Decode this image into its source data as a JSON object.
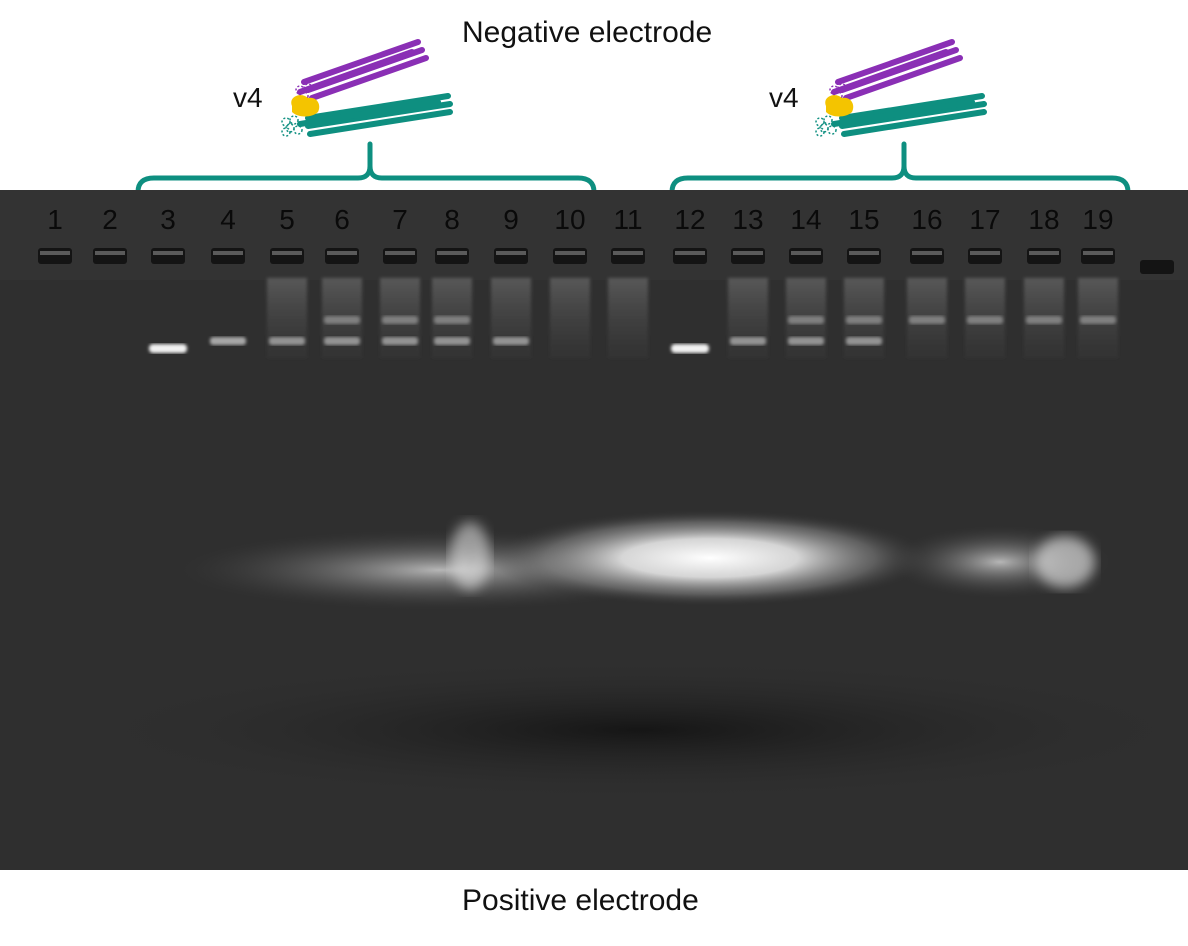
{
  "header": {
    "top_label": "Negative electrode",
    "bottom_label": "Positive electrode"
  },
  "constructs": [
    {
      "label": "v4",
      "lanes": "3-10"
    },
    {
      "label": "v4",
      "lanes": "12-19"
    }
  ],
  "colors": {
    "bracket": "#0e8f80",
    "rod_purple": "#8a2fb5",
    "rod_teal": "#0e8f80",
    "ligand_yellow": "#f4c400",
    "gel_background": "#2e2e2e"
  },
  "lanes": [
    {
      "number": "1",
      "bands": []
    },
    {
      "number": "2",
      "bands": []
    },
    {
      "number": "3",
      "bands": [
        "strong-lower"
      ]
    },
    {
      "number": "4",
      "bands": [
        "lower"
      ]
    },
    {
      "number": "5",
      "bands": [
        "lower",
        "smear"
      ]
    },
    {
      "number": "6",
      "bands": [
        "lower",
        "upper",
        "smear"
      ]
    },
    {
      "number": "7",
      "bands": [
        "lower",
        "upper",
        "smear"
      ]
    },
    {
      "number": "8",
      "bands": [
        "lower",
        "upper",
        "smear"
      ]
    },
    {
      "number": "9",
      "bands": [
        "lower",
        "smear"
      ]
    },
    {
      "number": "10",
      "bands": [
        "smear"
      ]
    },
    {
      "number": "11",
      "bands": [
        "smear"
      ]
    },
    {
      "number": "12",
      "bands": [
        "strong-lower"
      ]
    },
    {
      "number": "13",
      "bands": [
        "lower",
        "smear"
      ]
    },
    {
      "number": "14",
      "bands": [
        "lower",
        "upper",
        "smear"
      ]
    },
    {
      "number": "15",
      "bands": [
        "lower",
        "upper",
        "smear"
      ]
    },
    {
      "number": "16",
      "bands": [
        "upper",
        "smear"
      ]
    },
    {
      "number": "17",
      "bands": [
        "upper",
        "smear"
      ]
    },
    {
      "number": "18",
      "bands": [
        "upper",
        "smear"
      ]
    },
    {
      "number": "19",
      "bands": [
        "upper",
        "smear"
      ]
    }
  ]
}
